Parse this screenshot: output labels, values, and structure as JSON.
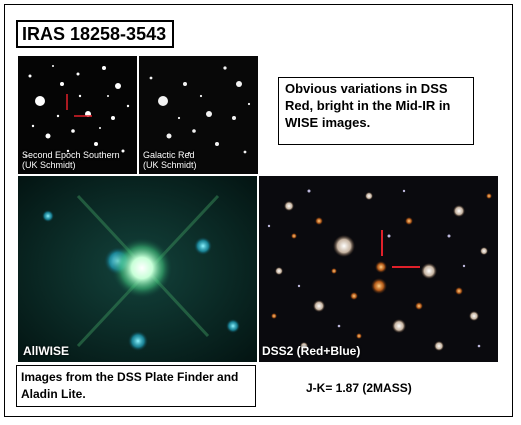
{
  "title": "IRAS 18258-3543",
  "panels": {
    "top_left": {
      "caption_line1": "Second Epoch Southern",
      "caption_line2": "(UK Schmidt)"
    },
    "top_right": {
      "caption_line1": "Galactic Red",
      "caption_line2": "(UK Schmidt)"
    },
    "bottom_left": {
      "caption": "AllWISE"
    },
    "bottom_right": {
      "caption": "DSS2 (Red+Blue)"
    }
  },
  "note": "Obvious variations in DSS Red, bright in the Mid-IR in WISE images.",
  "source_note": "Images from the DSS Plate Finder and Aladin Lite.",
  "color_index": "J-K= 1.87 (2MASS)",
  "colors": {
    "marker": "#e0202a",
    "panel_bg": "#000000"
  }
}
